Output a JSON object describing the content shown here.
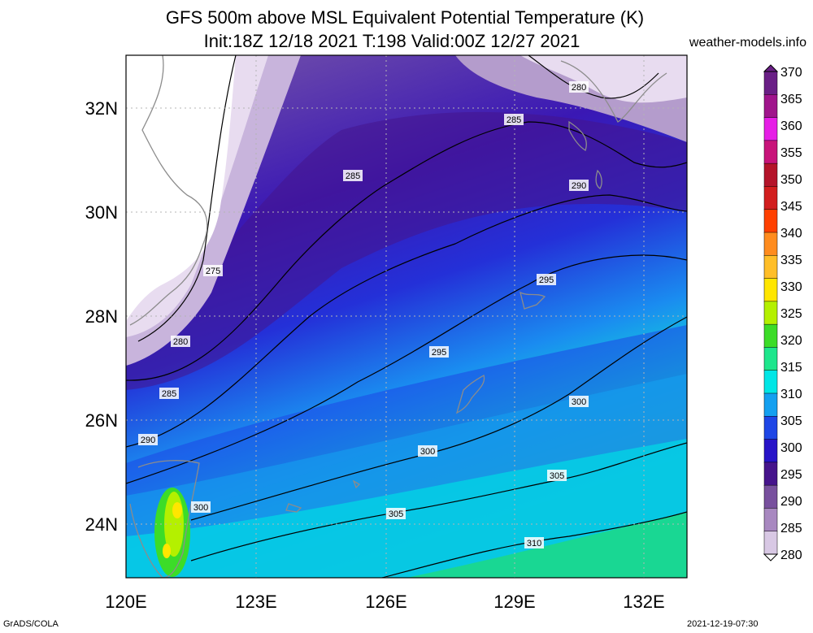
{
  "title": {
    "line1": "GFS 500m above MSL Equivalent Potential Temperature (K)",
    "line2": "Init:18Z 12/18 2021 T:198 Valid:00Z 12/27 2021"
  },
  "site": "weather-models.info",
  "footer": {
    "left": "GrADS/COLA",
    "right": "2021-12-19-07:30"
  },
  "map": {
    "lon_labels": [
      "120E",
      "123E",
      "126E",
      "129E",
      "132E"
    ],
    "lat_labels": [
      "32N",
      "30N",
      "28N",
      "26N",
      "24N"
    ],
    "contour_labels": [
      "275",
      "280",
      "280",
      "285",
      "285",
      "285",
      "290",
      "290",
      "295",
      "295",
      "300",
      "300",
      "300",
      "305",
      "305",
      "310"
    ]
  },
  "colorbar": {
    "labels": [
      "370",
      "365",
      "360",
      "355",
      "350",
      "345",
      "340",
      "335",
      "330",
      "325",
      "320",
      "315",
      "310",
      "305",
      "300",
      "295",
      "290",
      "285",
      "280"
    ],
    "colors": [
      "#6a1f86",
      "#a0158c",
      "#e61ee6",
      "#c8147a",
      "#b4142a",
      "#d21e1e",
      "#ff4000",
      "#ff8c1e",
      "#ffbe28",
      "#ffe600",
      "#b4f000",
      "#3cdc28",
      "#1ee68c",
      "#00e6e6",
      "#14a0f0",
      "#1e46e6",
      "#2814c8",
      "#46148c",
      "#78509e",
      "#a888c0",
      "#d8c8e4"
    ]
  }
}
